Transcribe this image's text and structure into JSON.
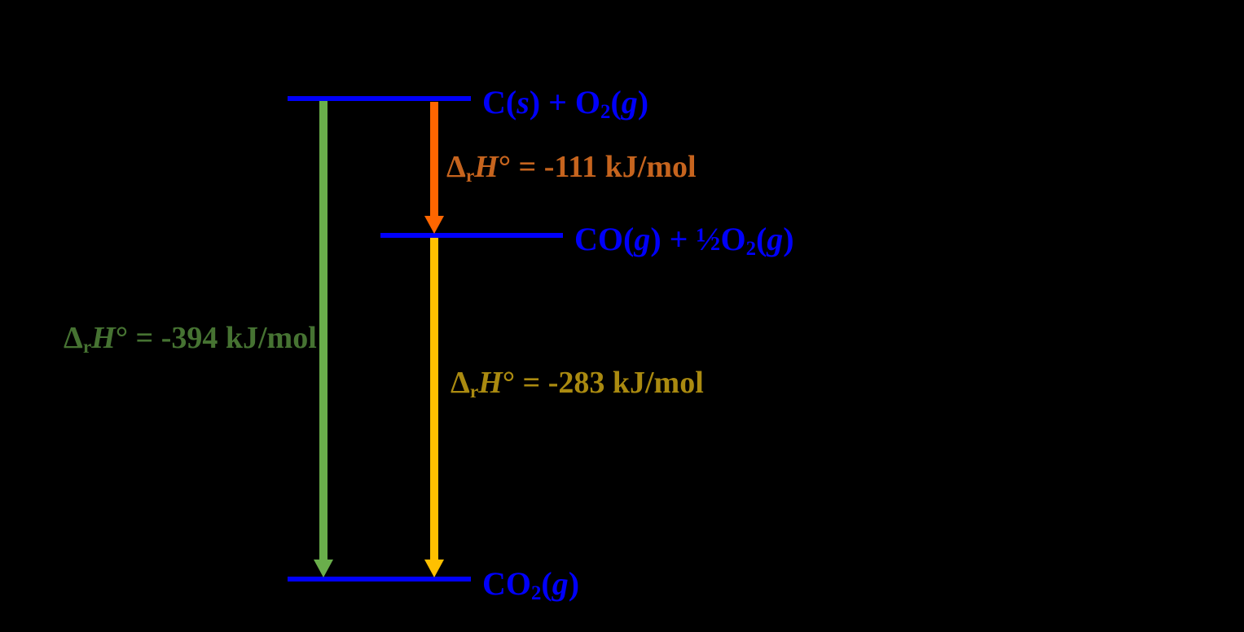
{
  "colors": {
    "background": "#000000",
    "level": "#0000fa",
    "formula_text": "#0000fa",
    "arrow_green": "#6aae4b",
    "arrow_orange": "#ff6600",
    "arrow_yellow": "#ffc000",
    "label_green": "#467332",
    "label_orange": "#c6641e",
    "label_yellow": "#aa8a10"
  },
  "diagram": {
    "type": "enthalpy-level-diagram",
    "levels": [
      {
        "id": "reactants",
        "plain": "C(s) + O2(g)",
        "formula": [
          {
            "t": "C("
          },
          {
            "t": "s",
            "style": "i"
          },
          {
            "t": ") + O"
          },
          {
            "t": "2",
            "style": "sub"
          },
          {
            "t": "("
          },
          {
            "t": "g",
            "style": "i"
          },
          {
            "t": ")"
          }
        ]
      },
      {
        "id": "intermediate",
        "plain": "CO(g) + ½O2(g)",
        "formula": [
          {
            "t": "CO("
          },
          {
            "t": "g",
            "style": "i"
          },
          {
            "t": ") + ½O"
          },
          {
            "t": "2",
            "style": "sub"
          },
          {
            "t": "("
          },
          {
            "t": "g",
            "style": "i"
          },
          {
            "t": ")"
          }
        ]
      },
      {
        "id": "product",
        "plain": "CO2(g)",
        "formula": [
          {
            "t": "CO"
          },
          {
            "t": "2",
            "style": "sub"
          },
          {
            "t": "("
          },
          {
            "t": "g",
            "style": "i"
          },
          {
            "t": ")"
          }
        ]
      }
    ],
    "transitions": [
      {
        "from": "reactants",
        "to": "product",
        "color": "green",
        "value_kj_per_mol": -394,
        "plain": "ΔrH° = -394 kJ/mol",
        "label": [
          {
            "t": "Δ"
          },
          {
            "t": "r",
            "style": "sub"
          },
          {
            "t": "H",
            "style": "i"
          },
          {
            "t": "° = -394 kJ/mol"
          }
        ]
      },
      {
        "from": "reactants",
        "to": "intermediate",
        "color": "orange",
        "value_kj_per_mol": -111,
        "plain": "ΔrH° = -111 kJ/mol",
        "label": [
          {
            "t": "Δ"
          },
          {
            "t": "r",
            "style": "sub"
          },
          {
            "t": "H",
            "style": "i"
          },
          {
            "t": "° = -111 kJ/mol"
          }
        ]
      },
      {
        "from": "intermediate",
        "to": "product",
        "color": "yellow",
        "value_kj_per_mol": -283,
        "plain": "ΔrH° = -283 kJ/mol",
        "label": [
          {
            "t": "Δ"
          },
          {
            "t": "r",
            "style": "sub"
          },
          {
            "t": "H",
            "style": "i"
          },
          {
            "t": "° = -283 kJ/mol"
          }
        ]
      }
    ]
  }
}
